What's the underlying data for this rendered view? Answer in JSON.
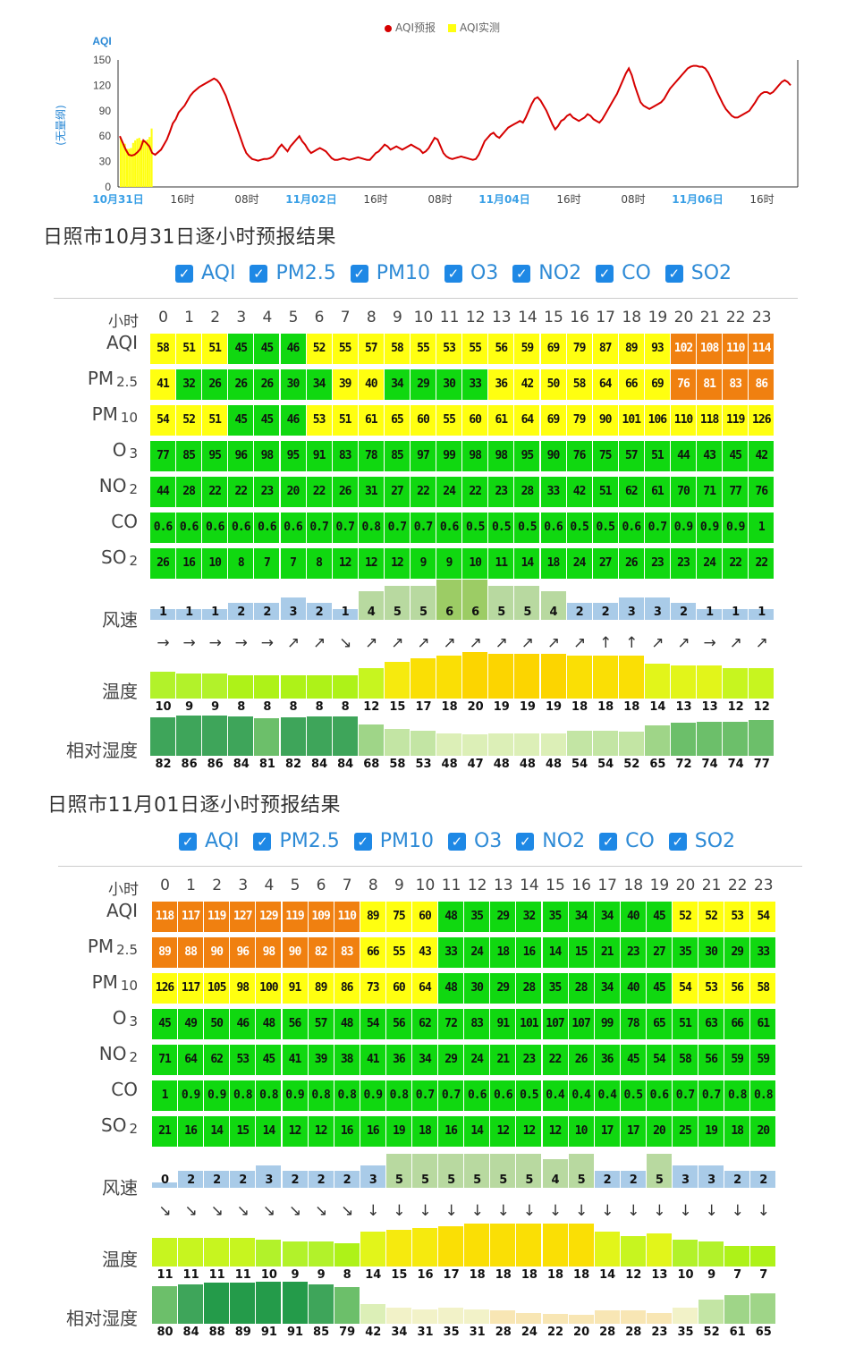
{
  "chart_data": {
    "type": "line",
    "title": "",
    "ylabel_top": "AQI",
    "ylabel_side": "(无量纲)",
    "ylim": [
      0,
      150
    ],
    "yticks": [
      "150",
      "120",
      "90",
      "60",
      "30",
      "0"
    ],
    "xticks": [
      "10月31日",
      "16时",
      "08时",
      "11月02日",
      "16时",
      "08时",
      "11月04日",
      "16时",
      "08时",
      "11月06日",
      "16时"
    ],
    "xticks_highlight": [
      true,
      false,
      false,
      true,
      false,
      false,
      true,
      false,
      false,
      true,
      false
    ],
    "series": [
      {
        "name": "AQI预报",
        "color": "#d60000",
        "values": [
          60,
          52,
          44,
          38,
          37,
          38,
          41,
          45,
          55,
          52,
          48,
          40,
          38,
          41,
          44,
          50,
          56,
          65,
          75,
          80,
          88,
          92,
          96,
          102,
          108,
          112,
          115,
          118,
          120,
          122,
          124,
          126,
          128,
          126,
          122,
          115,
          108,
          98,
          88,
          78,
          68,
          58,
          48,
          40,
          36,
          33,
          32,
          31,
          32,
          33,
          33,
          34,
          36,
          40,
          46,
          50,
          46,
          42,
          48,
          52,
          56,
          60,
          54,
          50,
          44,
          40,
          42,
          44,
          46,
          44,
          42,
          38,
          34,
          32,
          32,
          33,
          34,
          33,
          32,
          33,
          34,
          35,
          34,
          33,
          32,
          32,
          36,
          40,
          42,
          46,
          50,
          48,
          44,
          46,
          48,
          46,
          44,
          46,
          48,
          50,
          48,
          46,
          44,
          40,
          42,
          46,
          52,
          58,
          56,
          48,
          40,
          36,
          34,
          33,
          34,
          35,
          36,
          35,
          34,
          33,
          32,
          33,
          38,
          46,
          54,
          58,
          62,
          64,
          60,
          58,
          62,
          66,
          70,
          72,
          74,
          76,
          78,
          76,
          82,
          90,
          98,
          104,
          106,
          102,
          96,
          90,
          82,
          74,
          68,
          72,
          78,
          80,
          84,
          86,
          82,
          80,
          78,
          80,
          82,
          86,
          84,
          80,
          78,
          76,
          80,
          86,
          92,
          98,
          104,
          110,
          118,
          126,
          134,
          140,
          132,
          120,
          110,
          100,
          96,
          94,
          92,
          94,
          96,
          98,
          100,
          104,
          110,
          116,
          120,
          124,
          128,
          132,
          136,
          140,
          142,
          143,
          143,
          142,
          142,
          140,
          135,
          128,
          120,
          112,
          105,
          98,
          92,
          88,
          84,
          82,
          82,
          84,
          86,
          88,
          90,
          95,
          100,
          106,
          110,
          112,
          112,
          110,
          112,
          116,
          120,
          124,
          126,
          124,
          120
        ]
      },
      {
        "name": "AQI实测",
        "color": "#ffff10",
        "values": [
          58,
          51,
          51,
          45,
          45,
          46,
          52,
          55,
          57,
          58,
          55,
          53,
          55,
          56,
          59,
          69
        ]
      }
    ]
  },
  "sections": [
    {
      "title": "日照市10月31日逐小时预报结果",
      "checks": [
        "AQI",
        "PM2.5",
        "PM10",
        "O3",
        "NO2",
        "CO",
        "SO2"
      ],
      "hour_label": "小时",
      "hours": [
        "0",
        "1",
        "2",
        "3",
        "4",
        "5",
        "6",
        "7",
        "8",
        "9",
        "10",
        "11",
        "12",
        "13",
        "14",
        "15",
        "16",
        "17",
        "18",
        "19",
        "20",
        "21",
        "22",
        "23"
      ],
      "rows": [
        {
          "label": "AQI",
          "sub": "",
          "values": [
            "58",
            "51",
            "51",
            "45",
            "45",
            "46",
            "52",
            "55",
            "57",
            "58",
            "55",
            "53",
            "55",
            "56",
            "59",
            "69",
            "79",
            "87",
            "89",
            "93",
            "102",
            "108",
            "110",
            "114"
          ],
          "colors": "yyygggyyyyyyyyyyyyyyoooo"
        },
        {
          "label": "PM",
          "sub": "2.5",
          "values": [
            "41",
            "32",
            "26",
            "26",
            "26",
            "30",
            "34",
            "39",
            "40",
            "34",
            "29",
            "30",
            "33",
            "36",
            "42",
            "50",
            "58",
            "64",
            "66",
            "69",
            "76",
            "81",
            "83",
            "86"
          ],
          "colors": "ygggggg yyggggyyyyyyyoooo"
        },
        {
          "label": "PM",
          "sub": "10",
          "values": [
            "54",
            "52",
            "51",
            "45",
            "45",
            "46",
            "53",
            "51",
            "61",
            "65",
            "60",
            "55",
            "60",
            "61",
            "64",
            "69",
            "79",
            "90",
            "101",
            "106",
            "110",
            "118",
            "119",
            "126"
          ],
          "colors": "yyygggyyyyyyyyyyyyyyyyyy"
        },
        {
          "label": "O",
          "sub": "3",
          "values": [
            "77",
            "85",
            "95",
            "96",
            "98",
            "95",
            "91",
            "83",
            "78",
            "85",
            "97",
            "99",
            "98",
            "98",
            "95",
            "90",
            "76",
            "75",
            "57",
            "51",
            "44",
            "43",
            "45",
            "42"
          ],
          "colors": "gggggggggggggggggggggggg"
        },
        {
          "label": "NO",
          "sub": "2",
          "values": [
            "44",
            "28",
            "22",
            "22",
            "23",
            "20",
            "22",
            "26",
            "31",
            "27",
            "22",
            "24",
            "22",
            "23",
            "28",
            "33",
            "42",
            "51",
            "62",
            "61",
            "70",
            "71",
            "77",
            "76"
          ],
          "colors": "gggggggggggggggggggggggg"
        },
        {
          "label": "CO",
          "sub": "",
          "values": [
            "0.6",
            "0.6",
            "0.6",
            "0.6",
            "0.6",
            "0.6",
            "0.7",
            "0.7",
            "0.8",
            "0.7",
            "0.7",
            "0.6",
            "0.5",
            "0.5",
            "0.5",
            "0.6",
            "0.5",
            "0.5",
            "0.6",
            "0.7",
            "0.9",
            "0.9",
            "0.9",
            "1"
          ],
          "colors": "gggggggggggggggggggggggg"
        },
        {
          "label": "SO",
          "sub": "2",
          "values": [
            "26",
            "16",
            "10",
            "8",
            "7",
            "7",
            "8",
            "12",
            "12",
            "12",
            "9",
            "9",
            "10",
            "11",
            "14",
            "18",
            "24",
            "27",
            "26",
            "23",
            "23",
            "24",
            "22",
            "22"
          ],
          "colors": "gggggggggggggggggggggggg"
        }
      ],
      "wind_label": "风速",
      "wind": [
        "1",
        "1",
        "1",
        "2",
        "2",
        "3",
        "2",
        "1",
        "4",
        "5",
        "5",
        "6",
        "6",
        "5",
        "5",
        "4",
        "2",
        "2",
        "3",
        "3",
        "2",
        "1",
        "1",
        "1"
      ],
      "wind_dir": [
        "→",
        "→",
        "→",
        "→",
        "→",
        "↗",
        "↗",
        "↘",
        "↗",
        "↗",
        "↗",
        "↗",
        "↗",
        "↗",
        "↗",
        "↗",
        "↗",
        "↑",
        "↑",
        "↗",
        "↗",
        "→",
        "↗",
        "↗"
      ],
      "temp_label": "温度",
      "temp": [
        "10",
        "9",
        "9",
        "8",
        "8",
        "8",
        "8",
        "8",
        "12",
        "15",
        "17",
        "18",
        "20",
        "19",
        "19",
        "19",
        "18",
        "18",
        "18",
        "14",
        "13",
        "13",
        "12",
        "12"
      ],
      "hum_label": "相对湿度",
      "hum": [
        "82",
        "86",
        "86",
        "84",
        "81",
        "82",
        "84",
        "84",
        "68",
        "58",
        "53",
        "48",
        "47",
        "48",
        "48",
        "48",
        "54",
        "54",
        "52",
        "65",
        "72",
        "74",
        "74",
        "77"
      ]
    },
    {
      "title": "日照市11月01日逐小时预报结果",
      "checks": [
        "AQI",
        "PM2.5",
        "PM10",
        "O3",
        "NO2",
        "CO",
        "SO2"
      ],
      "hour_label": "小时",
      "hours": [
        "0",
        "1",
        "2",
        "3",
        "4",
        "5",
        "6",
        "7",
        "8",
        "9",
        "10",
        "11",
        "12",
        "13",
        "14",
        "15",
        "16",
        "17",
        "18",
        "19",
        "20",
        "21",
        "22",
        "23"
      ],
      "rows": [
        {
          "label": "AQI",
          "sub": "",
          "values": [
            "118",
            "117",
            "119",
            "127",
            "129",
            "119",
            "109",
            "110",
            "89",
            "75",
            "60",
            "48",
            "35",
            "29",
            "32",
            "35",
            "34",
            "34",
            "40",
            "45",
            "52",
            "52",
            "53",
            "54"
          ],
          "colors": "ooooooooyyygggggggggyyyy"
        },
        {
          "label": "PM",
          "sub": "2.5",
          "values": [
            "89",
            "88",
            "90",
            "96",
            "98",
            "90",
            "82",
            "83",
            "66",
            "55",
            "43",
            "33",
            "24",
            "18",
            "16",
            "14",
            "15",
            "21",
            "23",
            "27",
            "35",
            "30",
            "29",
            "33"
          ],
          "colors": "ooooooooyyyggggggggggggg"
        },
        {
          "label": "PM",
          "sub": "10",
          "values": [
            "126",
            "117",
            "105",
            "98",
            "100",
            "91",
            "89",
            "86",
            "73",
            "60",
            "64",
            "48",
            "30",
            "29",
            "28",
            "35",
            "28",
            "34",
            "40",
            "45",
            "54",
            "53",
            "56",
            "58"
          ],
          "colors": "yyyyyyyyyyyggggggggg yyyy"
        },
        {
          "label": "O",
          "sub": "3",
          "values": [
            "45",
            "49",
            "50",
            "46",
            "48",
            "56",
            "57",
            "48",
            "54",
            "56",
            "62",
            "72",
            "83",
            "91",
            "101",
            "107",
            "107",
            "99",
            "78",
            "65",
            "51",
            "63",
            "66",
            "61"
          ],
          "colors": "gggggggggggggggggggggggg"
        },
        {
          "label": "NO",
          "sub": "2",
          "values": [
            "71",
            "64",
            "62",
            "53",
            "45",
            "41",
            "39",
            "38",
            "41",
            "36",
            "34",
            "29",
            "24",
            "21",
            "23",
            "22",
            "26",
            "36",
            "45",
            "54",
            "58",
            "56",
            "59",
            "59"
          ],
          "colors": "gggggggggggggggggggggggg"
        },
        {
          "label": "CO",
          "sub": "",
          "values": [
            "1",
            "0.9",
            "0.9",
            "0.8",
            "0.8",
            "0.9",
            "0.8",
            "0.8",
            "0.9",
            "0.8",
            "0.7",
            "0.7",
            "0.6",
            "0.6",
            "0.5",
            "0.4",
            "0.4",
            "0.4",
            "0.5",
            "0.6",
            "0.7",
            "0.7",
            "0.8",
            "0.8"
          ],
          "colors": "gggggggggggggggggggggggg"
        },
        {
          "label": "SO",
          "sub": "2",
          "values": [
            "21",
            "16",
            "14",
            "15",
            "14",
            "12",
            "12",
            "16",
            "16",
            "19",
            "18",
            "16",
            "14",
            "12",
            "12",
            "12",
            "10",
            "17",
            "17",
            "20",
            "25",
            "19",
            "18",
            "20"
          ],
          "colors": "gggggggggggggggggggggggg"
        }
      ],
      "wind_label": "风速",
      "wind": [
        "0",
        "2",
        "2",
        "2",
        "3",
        "2",
        "2",
        "2",
        "3",
        "5",
        "5",
        "5",
        "5",
        "5",
        "5",
        "4",
        "5",
        "2",
        "2",
        "5",
        "3",
        "3",
        "2",
        "2"
      ],
      "wind_dir": [
        "↘",
        "↘",
        "↘",
        "↘",
        "↘",
        "↘",
        "↘",
        "↘",
        "↓",
        "↓",
        "↓",
        "↓",
        "↓",
        "↓",
        "↓",
        "↓",
        "↓",
        "↓",
        "↓",
        "↓",
        "↓",
        "↓",
        "↓",
        "↓"
      ],
      "temp_label": "温度",
      "temp": [
        "11",
        "11",
        "11",
        "11",
        "10",
        "9",
        "9",
        "8",
        "14",
        "15",
        "16",
        "17",
        "18",
        "18",
        "18",
        "18",
        "18",
        "14",
        "12",
        "13",
        "10",
        "9",
        "7",
        "7"
      ],
      "hum_label": "相对湿度",
      "hum": [
        "80",
        "84",
        "88",
        "89",
        "91",
        "91",
        "85",
        "79",
        "42",
        "34",
        "31",
        "35",
        "31",
        "28",
        "24",
        "22",
        "20",
        "28",
        "28",
        "23",
        "35",
        "52",
        "61",
        "65"
      ]
    }
  ]
}
